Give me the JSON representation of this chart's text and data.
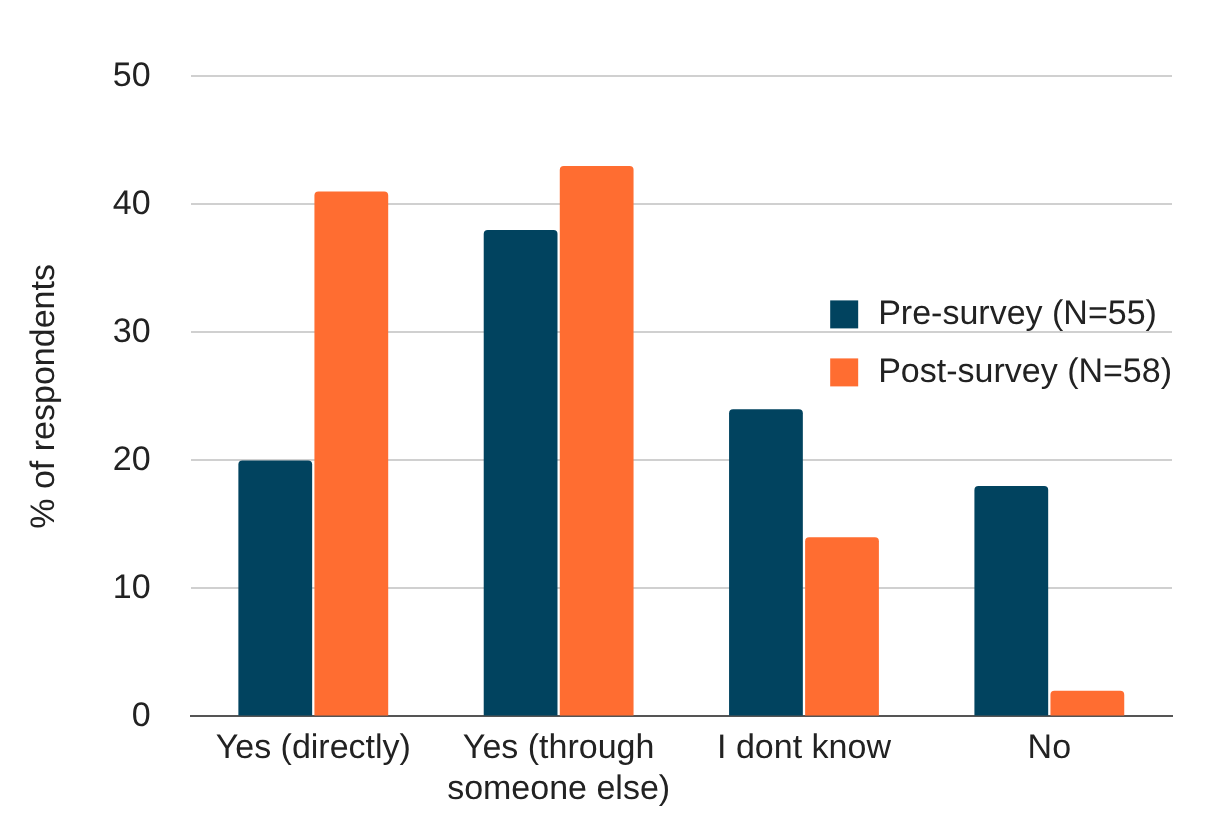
{
  "chart_data": {
    "type": "bar",
    "ylabel": "% of respondents",
    "categories": [
      "Yes (directly)",
      "Yes (through someone else)",
      "I dont know",
      "No"
    ],
    "series": [
      {
        "name": "Pre-survey (N=55)",
        "color": "#01435f",
        "values": [
          20,
          38,
          24,
          18
        ]
      },
      {
        "name": "Post-survey (N=58)",
        "color": "#ff6d31",
        "values": [
          41,
          43,
          14,
          2
        ]
      }
    ],
    "ylim": [
      0,
      50
    ],
    "yticks": [
      0,
      10,
      20,
      30,
      40,
      50
    ],
    "grid": "y",
    "legend": "right"
  }
}
